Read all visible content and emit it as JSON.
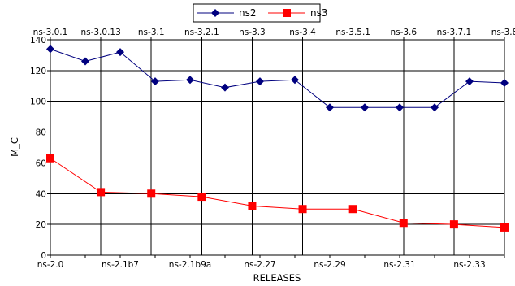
{
  "chart_data": {
    "type": "line",
    "xlabel": "RELEASES",
    "ylabel": "M_C",
    "ylim": [
      0,
      140
    ],
    "y_ticks": [
      0,
      20,
      40,
      60,
      80,
      100,
      120,
      140
    ],
    "grid": true,
    "legend_position": "top-center",
    "bottom_axis_labels": [
      "ns-2.0",
      "ns-2.1b7",
      "ns-2.1b9a",
      "ns-2.27",
      "ns-2.29",
      "ns-2.31",
      "ns-2.33"
    ],
    "top_axis_labels": [
      "ns-3.0.1",
      "ns-3.0.13",
      "ns-3.1",
      "ns-3.2.1",
      "ns-3.3",
      "ns-3.4",
      "ns-3.5.1",
      "ns-3.6",
      "ns-3.7.1",
      "ns-3.8"
    ],
    "series": [
      {
        "name": "ns2",
        "color": "#00007f",
        "marker": "diamond",
        "values": [
          134,
          126,
          132,
          113,
          114,
          109,
          113,
          114,
          96,
          96,
          96,
          96,
          113,
          112
        ]
      },
      {
        "name": "ns3",
        "color": "#ff0000",
        "marker": "square",
        "values": [
          63,
          41,
          40,
          38,
          32,
          30,
          30,
          21,
          20,
          18
        ]
      }
    ]
  }
}
